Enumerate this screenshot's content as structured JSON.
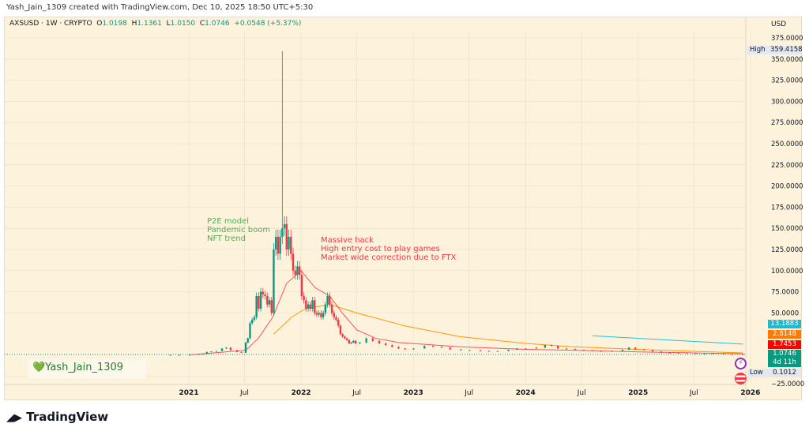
{
  "header": {
    "created_by": "Yash_Jain_1309 created with TradingView.com, Dec 10, 2025 18:50 UTC+5:30"
  },
  "legend": {
    "symbol": "AXSUSD · 1W · CRYPTO",
    "o_label": "O",
    "o": "1.0198",
    "h_label": "H",
    "h": "1.1361",
    "l_label": "L",
    "l": "1.0150",
    "c_label": "C",
    "c": "1.0746",
    "change": "+0.0548 (+5.37%)"
  },
  "currency": "USD",
  "price_axis": [
    "375.0000",
    "350.0000",
    "325.0000",
    "300.0000",
    "275.0000",
    "250.0000",
    "225.0000",
    "200.0000",
    "175.0000",
    "150.0000",
    "125.0000",
    "100.0000",
    "75.0000",
    "50.0000",
    "−25.0000"
  ],
  "time_axis": [
    "2021",
    "Jul",
    "2022",
    "Jul",
    "2023",
    "Jul",
    "2024",
    "Jul",
    "2025",
    "Jul",
    "2026"
  ],
  "badges": {
    "high_label": "High",
    "high": "359.4158",
    "cyan": "13.1883",
    "orange": "2.8148",
    "red": "1.7453",
    "last": "1.0746",
    "countdown": "4d 11h",
    "low_label": "Low",
    "low": "0.1012"
  },
  "annotations": {
    "green": [
      "P2E model",
      "Pandemic boom",
      "NFT trend"
    ],
    "red": [
      "Massive hack",
      "High entry cost to play games",
      "Market wide correction due to FTX"
    ]
  },
  "watermark": "💚Yash_Jain_1309",
  "logo": "TradingView",
  "colors": {
    "up": "#089981",
    "down": "#f23645",
    "ma_fast": "#f7525f",
    "ma_slow": "#ff9800",
    "trend": "#22c3d6",
    "background": "#fdf3dc"
  },
  "chart_data": {
    "type": "candlestick",
    "ylim": [
      -25,
      375
    ],
    "spike_high": {
      "date": "2021-11-01",
      "value": 359.4158
    },
    "closes": [
      [
        "2020-11-02",
        0.5
      ],
      [
        "2020-12-01",
        0.5
      ],
      [
        "2021-01-04",
        0.6
      ],
      [
        "2021-02-01",
        1.5
      ],
      [
        "2021-02-15",
        1.8
      ],
      [
        "2021-03-01",
        4
      ],
      [
        "2021-03-15",
        4.5
      ],
      [
        "2021-04-01",
        5
      ],
      [
        "2021-04-19",
        8
      ],
      [
        "2021-05-03",
        9
      ],
      [
        "2021-05-17",
        6
      ],
      [
        "2021-06-07",
        4
      ],
      [
        "2021-06-21",
        3
      ],
      [
        "2021-07-05",
        15
      ],
      [
        "2021-07-12",
        20
      ],
      [
        "2021-07-19",
        38
      ],
      [
        "2021-07-26",
        42
      ],
      [
        "2021-08-02",
        45
      ],
      [
        "2021-08-09",
        70
      ],
      [
        "2021-08-16",
        55
      ],
      [
        "2021-08-23",
        75
      ],
      [
        "2021-08-30",
        72
      ],
      [
        "2021-09-06",
        70
      ],
      [
        "2021-09-13",
        60
      ],
      [
        "2021-09-20",
        65
      ],
      [
        "2021-09-27",
        50
      ],
      [
        "2021-10-04",
        125
      ],
      [
        "2021-10-11",
        140
      ],
      [
        "2021-10-18",
        120
      ],
      [
        "2021-10-25",
        140
      ],
      [
        "2021-11-01",
        150
      ],
      [
        "2021-11-08",
        155
      ],
      [
        "2021-11-15",
        125
      ],
      [
        "2021-11-22",
        140
      ],
      [
        "2021-11-29",
        120
      ],
      [
        "2021-12-06",
        100
      ],
      [
        "2021-12-13",
        95
      ],
      [
        "2021-12-20",
        105
      ],
      [
        "2021-12-27",
        95
      ],
      [
        "2022-01-03",
        70
      ],
      [
        "2022-01-10",
        65
      ],
      [
        "2022-01-17",
        55
      ],
      [
        "2022-01-24",
        60
      ],
      [
        "2022-01-31",
        55
      ],
      [
        "2022-02-07",
        65
      ],
      [
        "2022-02-14",
        50
      ],
      [
        "2022-02-21",
        48
      ],
      [
        "2022-02-28",
        50
      ],
      [
        "2022-03-07",
        45
      ],
      [
        "2022-03-14",
        50
      ],
      [
        "2022-03-21",
        60
      ],
      [
        "2022-03-28",
        70
      ],
      [
        "2022-04-04",
        60
      ],
      [
        "2022-04-11",
        50
      ],
      [
        "2022-04-18",
        45
      ],
      [
        "2022-04-25",
        42
      ],
      [
        "2022-05-02",
        35
      ],
      [
        "2022-05-09",
        25
      ],
      [
        "2022-05-16",
        22
      ],
      [
        "2022-05-23",
        20
      ],
      [
        "2022-05-30",
        18
      ],
      [
        "2022-06-06",
        14
      ],
      [
        "2022-06-13",
        15
      ],
      [
        "2022-06-20",
        17
      ],
      [
        "2022-06-27",
        14
      ],
      [
        "2022-07-11",
        15
      ],
      [
        "2022-08-01",
        20
      ],
      [
        "2022-08-22",
        17
      ],
      [
        "2022-09-12",
        14
      ],
      [
        "2022-10-03",
        12
      ],
      [
        "2022-10-24",
        10
      ],
      [
        "2022-11-14",
        8
      ],
      [
        "2022-12-05",
        7
      ],
      [
        "2023-01-02",
        8
      ],
      [
        "2023-02-06",
        11
      ],
      [
        "2023-03-06",
        10
      ],
      [
        "2023-04-03",
        9
      ],
      [
        "2023-05-01",
        7
      ],
      [
        "2023-06-05",
        6
      ],
      [
        "2023-07-03",
        6
      ],
      [
        "2023-08-07",
        5
      ],
      [
        "2023-09-04",
        4.5
      ],
      [
        "2023-10-02",
        5
      ],
      [
        "2023-11-06",
        6.5
      ],
      [
        "2023-12-04",
        8
      ],
      [
        "2024-01-01",
        8
      ],
      [
        "2024-02-05",
        9
      ],
      [
        "2024-03-04",
        12
      ],
      [
        "2024-03-25",
        11
      ],
      [
        "2024-04-15",
        8
      ],
      [
        "2024-05-13",
        7.5
      ],
      [
        "2024-06-10",
        6.5
      ],
      [
        "2024-07-08",
        6
      ],
      [
        "2024-08-05",
        5
      ],
      [
        "2024-09-02",
        5
      ],
      [
        "2024-10-07",
        5
      ],
      [
        "2024-11-11",
        6.5
      ],
      [
        "2024-12-02",
        9
      ],
      [
        "2024-12-23",
        7
      ],
      [
        "2025-01-20",
        6
      ],
      [
        "2025-02-17",
        4.5
      ],
      [
        "2025-03-17",
        3
      ],
      [
        "2025-04-14",
        3
      ],
      [
        "2025-05-12",
        3
      ],
      [
        "2025-06-09",
        2.5
      ],
      [
        "2025-07-07",
        2
      ],
      [
        "2025-08-04",
        2
      ],
      [
        "2025-09-01",
        2.5
      ],
      [
        "2025-10-06",
        1.8
      ],
      [
        "2025-11-03",
        1.2
      ],
      [
        "2025-12-08",
        1.0746
      ]
    ],
    "ma_fast": [
      [
        "2021-01-04",
        0.5
      ],
      [
        "2021-05-01",
        4
      ],
      [
        "2021-07-05",
        6
      ],
      [
        "2021-08-15",
        20
      ],
      [
        "2021-10-01",
        45
      ],
      [
        "2021-11-15",
        85
      ],
      [
        "2022-01-01",
        100
      ],
      [
        "2022-02-15",
        80
      ],
      [
        "2022-04-04",
        70
      ],
      [
        "2022-05-15",
        50
      ],
      [
        "2022-07-01",
        30
      ],
      [
        "2022-09-01",
        20
      ],
      [
        "2022-11-15",
        15
      ],
      [
        "2023-06-01",
        10
      ],
      [
        "2024-01-01",
        7
      ],
      [
        "2024-06-01",
        6
      ],
      [
        "2025-01-01",
        4
      ],
      [
        "2025-06-01",
        3
      ],
      [
        "2025-12-08",
        1.7453
      ]
    ],
    "ma_slow": [
      [
        "2021-10-04",
        25
      ],
      [
        "2021-12-01",
        45
      ],
      [
        "2022-01-15",
        55
      ],
      [
        "2022-04-04",
        60
      ],
      [
        "2022-07-01",
        50
      ],
      [
        "2022-12-01",
        35
      ],
      [
        "2023-06-01",
        22
      ],
      [
        "2024-01-01",
        14
      ],
      [
        "2024-06-01",
        10
      ],
      [
        "2025-01-01",
        7
      ],
      [
        "2025-06-01",
        5
      ],
      [
        "2025-12-08",
        2.8148
      ]
    ],
    "trendline": [
      [
        "2024-08-05",
        23
      ],
      [
        "2025-12-08",
        13.1883
      ]
    ]
  }
}
